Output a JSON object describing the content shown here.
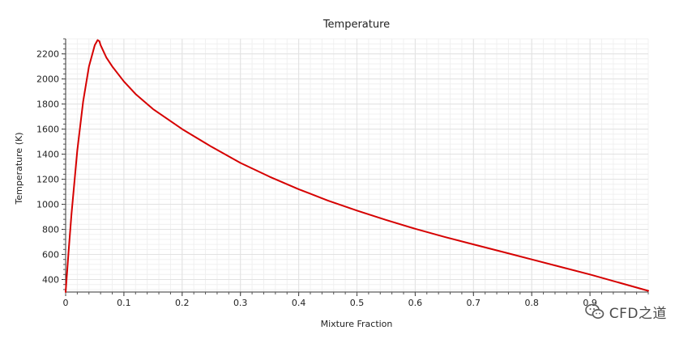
{
  "watermark": {
    "text": "CFD之道",
    "icon": "chat-bubble-icon"
  },
  "chart_data": {
    "type": "line",
    "title": "Temperature",
    "xlabel": "Mixture Fraction",
    "ylabel": "Temperature (K)",
    "xlim": [
      0,
      1.0
    ],
    "ylim": [
      300,
      2320
    ],
    "xticks": [
      0,
      0.1,
      0.2,
      0.3,
      0.4,
      0.5,
      0.6,
      0.7,
      0.8,
      0.9
    ],
    "xtick_labels": [
      "0",
      "0.1",
      "0.2",
      "0.3",
      "0.4",
      "0.5",
      "0.6",
      "0.7",
      "0.8",
      "0.9"
    ],
    "yticks": [
      400,
      600,
      800,
      1000,
      1200,
      1400,
      1600,
      1800,
      2000,
      2200
    ],
    "ytick_labels": [
      "400",
      "600",
      "800",
      "1000",
      "1200",
      "1400",
      "1600",
      "1800",
      "2000",
      "2200"
    ],
    "grid": true,
    "legend": false,
    "series": [
      {
        "color": "#d60000",
        "x": [
          0,
          0.005,
          0.01,
          0.02,
          0.03,
          0.04,
          0.05,
          0.055,
          0.058,
          0.06,
          0.07,
          0.08,
          0.1,
          0.12,
          0.15,
          0.2,
          0.25,
          0.3,
          0.35,
          0.4,
          0.45,
          0.5,
          0.55,
          0.6,
          0.65,
          0.7,
          0.75,
          0.8,
          0.85,
          0.9,
          0.95,
          1.0
        ],
        "y": [
          300,
          620,
          920,
          1430,
          1820,
          2100,
          2270,
          2310,
          2300,
          2270,
          2170,
          2100,
          1980,
          1880,
          1760,
          1600,
          1460,
          1330,
          1220,
          1120,
          1030,
          950,
          875,
          805,
          740,
          680,
          620,
          560,
          500,
          440,
          375,
          310
        ]
      }
    ]
  }
}
